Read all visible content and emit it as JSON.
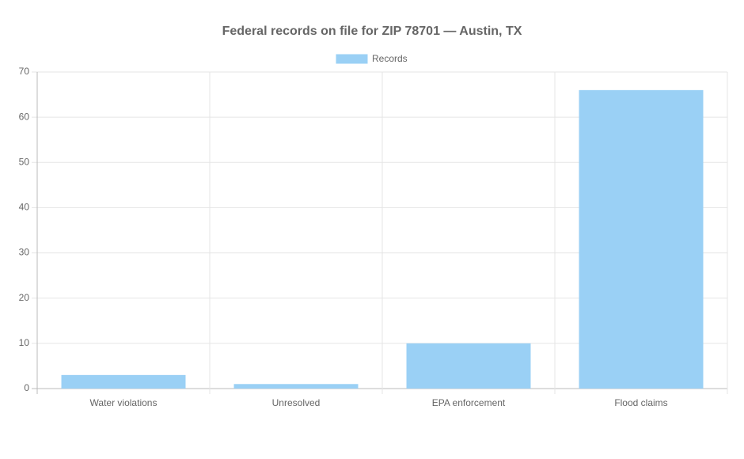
{
  "chart_data": {
    "type": "bar",
    "title": "Federal records on file for ZIP 78701 — Austin, TX",
    "categories": [
      "Water violations",
      "Unresolved",
      "EPA enforcement",
      "Flood claims"
    ],
    "series": [
      {
        "name": "Records",
        "color": "#9ad0f5",
        "values": [
          3,
          1,
          10,
          66
        ]
      }
    ],
    "ylim": [
      0,
      70
    ],
    "yticks": [
      0,
      10,
      20,
      30,
      40,
      50,
      60,
      70
    ],
    "grid": true,
    "legend": "top"
  }
}
